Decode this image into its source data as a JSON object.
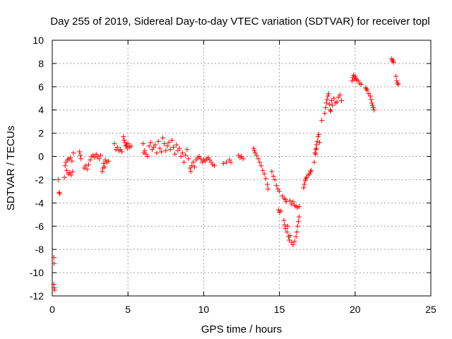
{
  "chart_data": {
    "type": "scatter",
    "title": "Day 255 of 2019, Sidereal Day-to-day VTEC variation (SDTVAR) for receiver topl",
    "xlabel": "GPS time / hours",
    "ylabel": "SDTVAR / TECUs",
    "xlim": [
      0,
      25
    ],
    "ylim": [
      -12,
      10
    ],
    "xticks": [
      "0",
      "5",
      "10",
      "15",
      "20",
      "25"
    ],
    "yticks": [
      "-12",
      "-10",
      "-8",
      "-6",
      "-4",
      "-2",
      "0",
      "2",
      "4",
      "6",
      "8",
      "10"
    ],
    "grid": true,
    "marker": "plus",
    "marker_color": "#ff0000",
    "series": [
      {
        "name": "SDTVAR",
        "points": [
          [
            0.1,
            -8.7
          ],
          [
            0.12,
            -9.2
          ],
          [
            0.1,
            -11.0
          ],
          [
            0.12,
            -11.3
          ],
          [
            0.15,
            -11.5
          ],
          [
            0.4,
            -2.0
          ],
          [
            0.45,
            -3.1
          ],
          [
            0.5,
            -3.2
          ],
          [
            0.8,
            -1.8
          ],
          [
            0.85,
            -0.8
          ],
          [
            0.9,
            -0.5
          ],
          [
            0.95,
            -1.2
          ],
          [
            1.0,
            -0.3
          ],
          [
            1.05,
            -1.5
          ],
          [
            1.1,
            -0.2
          ],
          [
            1.15,
            -1.4
          ],
          [
            1.2,
            -0.1
          ],
          [
            1.25,
            -1.6
          ],
          [
            1.3,
            -0.4
          ],
          [
            1.35,
            -1.3
          ],
          [
            1.4,
            0.3
          ],
          [
            1.8,
            0.4
          ],
          [
            1.85,
            0.1
          ],
          [
            1.9,
            -0.2
          ],
          [
            2.1,
            -1.0
          ],
          [
            2.2,
            -0.8
          ],
          [
            2.3,
            -1.1
          ],
          [
            2.4,
            -0.7
          ],
          [
            2.5,
            -0.3
          ],
          [
            2.6,
            0.0
          ],
          [
            2.7,
            0.1
          ],
          [
            2.8,
            -0.1
          ],
          [
            2.9,
            0.2
          ],
          [
            3.0,
            0.0
          ],
          [
            3.1,
            -0.2
          ],
          [
            3.2,
            0.1
          ],
          [
            3.3,
            -1.3
          ],
          [
            3.35,
            -1.0
          ],
          [
            3.4,
            -0.6
          ],
          [
            3.45,
            -0.9
          ],
          [
            3.5,
            -0.3
          ],
          [
            3.6,
            -0.5
          ],
          [
            3.7,
            -0.4
          ],
          [
            4.1,
            1.1
          ],
          [
            4.2,
            0.6
          ],
          [
            4.3,
            0.8
          ],
          [
            4.4,
            0.5
          ],
          [
            4.5,
            0.6
          ],
          [
            4.6,
            0.4
          ],
          [
            4.7,
            1.7
          ],
          [
            4.75,
            1.4
          ],
          [
            4.8,
            1.2
          ],
          [
            4.85,
            0.9
          ],
          [
            4.9,
            1.0
          ],
          [
            4.95,
            0.7
          ],
          [
            5.0,
            1.1
          ],
          [
            5.1,
            0.8
          ],
          [
            5.2,
            0.9
          ],
          [
            6.0,
            1.1
          ],
          [
            6.05,
            0.3
          ],
          [
            6.1,
            0.5
          ],
          [
            6.2,
            0.2
          ],
          [
            6.3,
            0.0
          ],
          [
            6.4,
            0.9
          ],
          [
            6.5,
            1.2
          ],
          [
            6.6,
            0.6
          ],
          [
            6.7,
            0.8
          ],
          [
            6.8,
            1.0
          ],
          [
            6.9,
            0.3
          ],
          [
            7.0,
            1.3
          ],
          [
            7.1,
            0.7
          ],
          [
            7.2,
            0.4
          ],
          [
            7.3,
            1.6
          ],
          [
            7.4,
            1.1
          ],
          [
            7.5,
            0.5
          ],
          [
            7.6,
            0.9
          ],
          [
            7.7,
            1.2
          ],
          [
            7.8,
            0.6
          ],
          [
            7.9,
            1.4
          ],
          [
            8.0,
            0.8
          ],
          [
            8.1,
            0.2
          ],
          [
            8.2,
            1.0
          ],
          [
            8.3,
            0.5
          ],
          [
            8.4,
            0.7
          ],
          [
            8.5,
            0.0
          ],
          [
            8.6,
            0.3
          ],
          [
            8.7,
            -0.5
          ],
          [
            8.8,
            0.1
          ],
          [
            8.9,
            0.6
          ],
          [
            9.0,
            -0.2
          ],
          [
            9.1,
            -1.0
          ],
          [
            9.15,
            -1.3
          ],
          [
            9.2,
            -0.8
          ],
          [
            9.3,
            -0.5
          ],
          [
            9.4,
            -0.9
          ],
          [
            9.5,
            -0.3
          ],
          [
            9.6,
            -0.1
          ],
          [
            9.7,
            0.0
          ],
          [
            9.8,
            -0.2
          ],
          [
            9.9,
            -0.5
          ],
          [
            10.0,
            -0.3
          ],
          [
            10.1,
            -0.4
          ],
          [
            10.2,
            -0.2
          ],
          [
            10.3,
            -0.1
          ],
          [
            10.4,
            -0.3
          ],
          [
            10.5,
            -0.5
          ],
          [
            10.6,
            -0.7
          ],
          [
            10.7,
            -0.8
          ],
          [
            11.3,
            -0.6
          ],
          [
            11.5,
            -0.5
          ],
          [
            11.7,
            -0.3
          ],
          [
            11.8,
            -0.5
          ],
          [
            12.3,
            0.1
          ],
          [
            12.4,
            -0.1
          ],
          [
            12.5,
            0.0
          ],
          [
            12.6,
            -0.2
          ],
          [
            13.3,
            0.7
          ],
          [
            13.35,
            0.5
          ],
          [
            13.4,
            0.3
          ],
          [
            13.5,
            0.1
          ],
          [
            13.6,
            -0.2
          ],
          [
            13.7,
            -0.5
          ],
          [
            13.8,
            -0.8
          ],
          [
            13.9,
            -1.2
          ],
          [
            14.0,
            -1.5
          ],
          [
            14.1,
            -1.9
          ],
          [
            14.2,
            -2.4
          ],
          [
            14.25,
            -2.8
          ],
          [
            14.5,
            -1.3
          ],
          [
            14.6,
            -1.7
          ],
          [
            14.7,
            -2.0
          ],
          [
            14.8,
            -2.5
          ],
          [
            14.9,
            -2.8
          ],
          [
            15.0,
            -3.0
          ],
          [
            14.95,
            -4.6
          ],
          [
            15.0,
            -4.8
          ],
          [
            15.1,
            -4.7
          ],
          [
            15.2,
            -3.4
          ],
          [
            15.3,
            -3.6
          ],
          [
            15.4,
            -3.7
          ],
          [
            15.45,
            -3.9
          ],
          [
            15.3,
            -5.5
          ],
          [
            15.35,
            -5.9
          ],
          [
            15.4,
            -6.2
          ],
          [
            15.5,
            -6.5
          ],
          [
            15.55,
            -6.0
          ],
          [
            15.6,
            -6.9
          ],
          [
            15.65,
            -7.2
          ],
          [
            15.7,
            -6.8
          ],
          [
            15.8,
            -7.4
          ],
          [
            15.9,
            -7.6
          ],
          [
            16.0,
            -7.3
          ],
          [
            16.1,
            -6.9
          ],
          [
            16.15,
            -6.5
          ],
          [
            16.2,
            -6.0
          ],
          [
            16.25,
            -5.6
          ],
          [
            16.3,
            -5.2
          ],
          [
            15.7,
            -3.8
          ],
          [
            15.8,
            -4.1
          ],
          [
            15.9,
            -3.9
          ],
          [
            16.0,
            -4.2
          ],
          [
            16.1,
            -4.3
          ],
          [
            16.2,
            -4.4
          ],
          [
            16.3,
            -4.3
          ],
          [
            16.6,
            -2.7
          ],
          [
            16.65,
            -2.4
          ],
          [
            16.7,
            -2.1
          ],
          [
            16.75,
            -1.9
          ],
          [
            16.8,
            -1.8
          ],
          [
            16.9,
            -1.6
          ],
          [
            17.0,
            -1.5
          ],
          [
            17.05,
            -1.3
          ],
          [
            17.1,
            -1.2
          ],
          [
            17.3,
            -0.5
          ],
          [
            17.35,
            0.3
          ],
          [
            17.4,
            0.6
          ],
          [
            17.45,
            1.0
          ],
          [
            17.5,
            1.3
          ],
          [
            17.55,
            1.7
          ],
          [
            17.6,
            1.9
          ],
          [
            17.65,
            1.2
          ],
          [
            17.4,
            0.2
          ],
          [
            17.45,
            0.7
          ],
          [
            17.8,
            3.1
          ],
          [
            18.0,
            3.7
          ],
          [
            18.05,
            4.2
          ],
          [
            18.1,
            4.6
          ],
          [
            18.15,
            4.9
          ],
          [
            18.2,
            5.2
          ],
          [
            18.25,
            5.4
          ],
          [
            18.3,
            4.5
          ],
          [
            18.35,
            4.0
          ],
          [
            18.4,
            3.9
          ],
          [
            18.45,
            4.8
          ],
          [
            18.5,
            4.4
          ],
          [
            18.6,
            5.0
          ],
          [
            18.7,
            4.6
          ],
          [
            18.8,
            4.7
          ],
          [
            18.9,
            5.1
          ],
          [
            19.0,
            5.3
          ],
          [
            19.1,
            4.8
          ],
          [
            19.8,
            6.5
          ],
          [
            19.85,
            6.8
          ],
          [
            19.9,
            7.0
          ],
          [
            19.95,
            6.6
          ],
          [
            20.0,
            6.9
          ],
          [
            20.05,
            6.7
          ],
          [
            20.1,
            6.6
          ],
          [
            20.2,
            6.5
          ],
          [
            20.3,
            6.3
          ],
          [
            20.4,
            6.2
          ],
          [
            20.7,
            5.9
          ],
          [
            20.75,
            5.8
          ],
          [
            20.8,
            5.7
          ],
          [
            20.9,
            5.4
          ],
          [
            21.0,
            5.2
          ],
          [
            21.05,
            4.9
          ],
          [
            21.1,
            4.6
          ],
          [
            21.15,
            4.4
          ],
          [
            21.2,
            4.2
          ],
          [
            21.25,
            4.0
          ],
          [
            22.4,
            8.4
          ],
          [
            22.45,
            8.2
          ],
          [
            22.5,
            8.3
          ],
          [
            22.55,
            8.1
          ],
          [
            22.7,
            6.9
          ],
          [
            22.75,
            6.5
          ],
          [
            22.8,
            6.3
          ],
          [
            22.85,
            6.2
          ]
        ]
      }
    ]
  }
}
